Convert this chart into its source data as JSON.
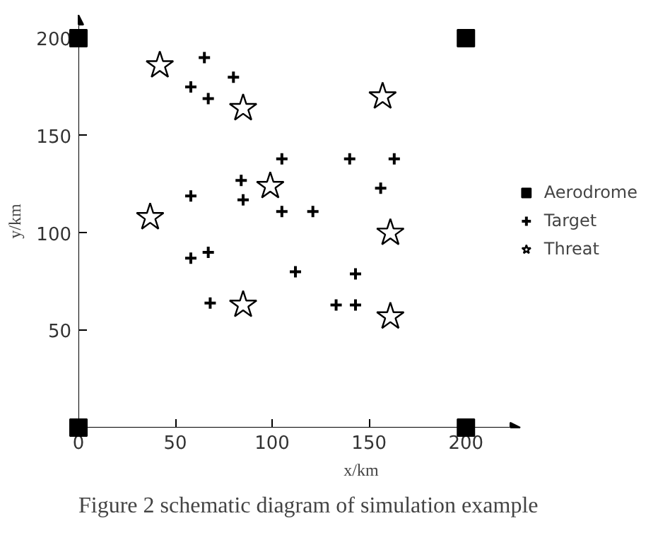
{
  "chart_data": {
    "type": "scatter",
    "xlabel": "x/km",
    "ylabel": "y/km",
    "annotations": [
      "Figure 2 schematic diagram of simulation example"
    ],
    "xlim": [
      0,
      228
    ],
    "ylim": [
      0,
      212
    ],
    "xticks": [
      0,
      50,
      100,
      150,
      200
    ],
    "yticks": [
      50,
      100,
      150,
      200
    ],
    "legend": "right",
    "series": [
      {
        "name": "Aerodrome",
        "color": "#000000",
        "marker": "square",
        "x": [
          0,
          200,
          0,
          200
        ],
        "values": [
          200,
          200,
          0,
          0
        ]
      },
      {
        "name": "Target",
        "color": "#000000",
        "marker": "cross",
        "x": [
          65,
          80,
          58,
          67,
          105,
          84,
          58,
          85,
          105,
          121,
          140,
          163,
          156,
          58,
          67,
          112,
          68,
          143,
          133,
          143
        ],
        "values": [
          190,
          180,
          175,
          169,
          138,
          127,
          119,
          117,
          111,
          111,
          138,
          138,
          123,
          87,
          90,
          80,
          64,
          79,
          63,
          63
        ]
      },
      {
        "name": "Threat",
        "color": "#000000",
        "marker": "star",
        "x": [
          42,
          85,
          99,
          37,
          157,
          161,
          85,
          161
        ],
        "values": [
          186,
          164,
          124,
          108,
          170,
          100,
          63,
          57
        ]
      }
    ]
  }
}
